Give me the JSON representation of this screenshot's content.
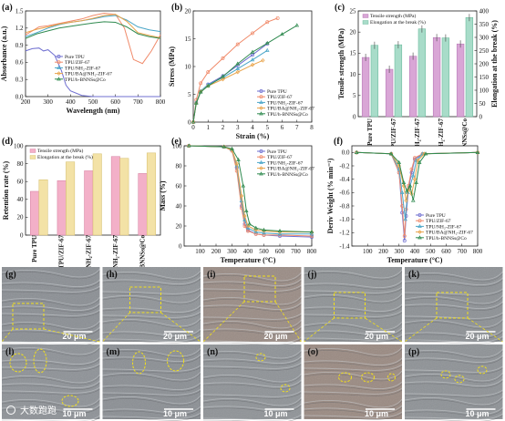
{
  "colors": {
    "pure": "#6f6fd0",
    "zif": "#f08a6a",
    "nh2": "#4aa6c8",
    "ba": "#e8a34a",
    "bnns": "#2f8a4f"
  },
  "series_names": [
    "Pure TPU",
    "TPU/ZIF-67",
    "TPU/NH₂-ZIF-67",
    "TPU/BA@NH₂-ZIF-67",
    "TPU/h-BNNSs@Co"
  ],
  "chart_data": [
    {
      "panel": "(a)",
      "type": "line",
      "xlabel": "Wavelength (nm)",
      "ylabel": "Absorbance (a.u.)",
      "xlim": [
        200,
        800
      ],
      "ylim": [
        0.0,
        1.5
      ],
      "xticks": [
        200,
        300,
        400,
        500,
        600,
        700,
        800
      ],
      "yticks": [
        0.0,
        0.3,
        0.6,
        0.9,
        1.2,
        1.5
      ],
      "legend": "center",
      "series": [
        {
          "name": "Pure TPU",
          "x": [
            200,
            230,
            260,
            280,
            300,
            330,
            360,
            380,
            400,
            450,
            500,
            600,
            700,
            800
          ],
          "y": [
            0.8,
            0.84,
            0.85,
            0.8,
            0.82,
            0.72,
            0.45,
            0.2,
            0.1,
            0.02,
            0.0,
            0.0,
            0.0,
            0.0
          ]
        },
        {
          "name": "TPU/ZIF-67",
          "x": [
            200,
            230,
            260,
            300,
            350,
            400,
            450,
            500,
            550,
            600,
            640,
            680,
            720,
            760,
            800
          ],
          "y": [
            1.08,
            1.15,
            1.22,
            1.24,
            1.28,
            1.32,
            1.36,
            1.42,
            1.46,
            1.44,
            1.2,
            0.65,
            0.58,
            0.8,
            1.08
          ]
        },
        {
          "name": "TPU/NH₂-ZIF-67",
          "x": [
            200,
            250,
            300,
            350,
            400,
            450,
            500,
            550,
            600,
            650,
            700,
            750,
            800
          ],
          "y": [
            1.05,
            1.12,
            1.2,
            1.26,
            1.3,
            1.33,
            1.36,
            1.4,
            1.42,
            1.34,
            1.22,
            1.17,
            1.14
          ]
        },
        {
          "name": "TPU/BA@NH₂-ZIF-67",
          "x": [
            200,
            250,
            300,
            350,
            400,
            450,
            500,
            550,
            600,
            650,
            700,
            750,
            800
          ],
          "y": [
            1.12,
            1.18,
            1.22,
            1.27,
            1.3,
            1.33,
            1.37,
            1.42,
            1.44,
            1.32,
            1.12,
            1.07,
            1.03
          ]
        },
        {
          "name": "TPU/h-BNNSs@Co",
          "x": [
            200,
            250,
            300,
            350,
            400,
            450,
            500,
            550,
            600,
            650,
            700,
            750,
            800
          ],
          "y": [
            1.02,
            1.1,
            1.15,
            1.2,
            1.23,
            1.26,
            1.29,
            1.31,
            1.3,
            1.22,
            1.1,
            1.05,
            1.02
          ]
        }
      ]
    },
    {
      "panel": "(b)",
      "type": "line",
      "xlabel": "Strain (%)",
      "ylabel": "Stress (MPa)",
      "xlim": [
        0,
        8
      ],
      "ylim": [
        0,
        20
      ],
      "xticks": [
        0,
        1,
        2,
        3,
        4,
        5,
        6,
        7,
        8
      ],
      "yticks": [
        0,
        5,
        10,
        15,
        20
      ],
      "legend": "lower-right",
      "series": [
        {
          "name": "Pure TPU",
          "x": [
            0,
            0.2,
            0.5,
            1,
            2,
            3,
            4,
            5
          ],
          "y": [
            0,
            3.5,
            5.5,
            6.8,
            8.3,
            10.2,
            12.1,
            14.1
          ]
        },
        {
          "name": "TPU/ZIF-67",
          "x": [
            0,
            0.2,
            0.5,
            1,
            2,
            3,
            4,
            5,
            5.7
          ],
          "y": [
            0,
            4,
            7,
            9,
            11.5,
            14,
            16,
            18,
            18.7
          ]
        },
        {
          "name": "TPU/NH₂-ZIF-67",
          "x": [
            0,
            0.2,
            0.5,
            1,
            2,
            3,
            4,
            5
          ],
          "y": [
            0,
            3.5,
            5.6,
            6.7,
            8,
            9.6,
            11.2,
            12.9
          ]
        },
        {
          "name": "TPU/BA@NH₂-ZIF-67",
          "x": [
            0,
            0.2,
            0.5,
            1,
            2,
            3,
            4,
            4.7
          ],
          "y": [
            0,
            3.4,
            5.5,
            6.5,
            7.7,
            9,
            10.3,
            11.1
          ]
        },
        {
          "name": "TPU/h-BNNSs@Co",
          "x": [
            0,
            0.2,
            0.5,
            1,
            2,
            3,
            4,
            5,
            6,
            7
          ],
          "y": [
            0,
            3.4,
            5.4,
            6.5,
            8.2,
            10.5,
            12.6,
            14.2,
            15.8,
            17.4
          ]
        }
      ]
    },
    {
      "panel": "(c)",
      "type": "bar",
      "categories": [
        "Pure TPU",
        "TPU/ZIF-67",
        "TPU/NH₂-ZIF-67",
        "TPU/BA@NH₂-ZIF-67",
        "TPU/h-BNNSs@Co"
      ],
      "ylabel": "Tensile strength (MPa)",
      "y2label": "Elongation at the break (%)",
      "ylim": [
        0,
        25
      ],
      "y2lim": [
        0,
        400
      ],
      "yticks": [
        0,
        5,
        10,
        15,
        20,
        25
      ],
      "y2ticks": [
        0,
        50,
        100,
        150,
        200,
        250,
        300,
        350,
        400
      ],
      "legend": "top-left",
      "series": [
        {
          "name": "Tensile strength (MPa)",
          "values": [
            14,
            11.2,
            14.3,
            18.7,
            17.2
          ]
        },
        {
          "name": "Elongation at the break (%)",
          "values": [
            270,
            272,
            332,
            298,
            375
          ]
        }
      ]
    },
    {
      "panel": "(d)",
      "type": "bar",
      "categories": [
        "Pure TPU",
        "TPU/ZIF-67",
        "TPU/NH₂-ZIF-67",
        "TPU/BA@NH₂-ZIF-67",
        "TPU/h-BNNSs@Co"
      ],
      "ylabel": "Retention rate (%)",
      "ylim": [
        0,
        100
      ],
      "yticks": [
        0,
        20,
        40,
        60,
        80,
        100
      ],
      "legend": "top-left",
      "series": [
        {
          "name": "Tensile strength (MPa)",
          "values": [
            49,
            61,
            72,
            88,
            69
          ]
        },
        {
          "name": "Elongation at the break (%)",
          "values": [
            62,
            82,
            91,
            86,
            92
          ]
        }
      ]
    },
    {
      "panel": "(e)",
      "type": "line",
      "xlabel": "Temperature (°C)",
      "ylabel": "Mass (%)",
      "xlim": [
        0,
        800
      ],
      "ylim": [
        0,
        100
      ],
      "xticks": [
        100,
        200,
        300,
        400,
        500,
        600,
        700,
        800
      ],
      "yticks": [
        0,
        20,
        40,
        60,
        80,
        100
      ],
      "legend": "top-right",
      "series": [
        {
          "name": "Pure TPU",
          "x": [
            30,
            250,
            300,
            330,
            360,
            380,
            400,
            450,
            500,
            600,
            800
          ],
          "y": [
            100,
            99,
            96,
            78,
            40,
            22,
            16,
            12,
            11,
            10,
            9
          ]
        },
        {
          "name": "TPU/ZIF-67",
          "x": [
            30,
            250,
            300,
            330,
            360,
            380,
            400,
            450,
            500,
            600,
            800
          ],
          "y": [
            100,
            99,
            95,
            75,
            38,
            20,
            15,
            12,
            11,
            11,
            10
          ]
        },
        {
          "name": "TPU/NH₂-ZIF-67",
          "x": [
            30,
            250,
            300,
            330,
            360,
            380,
            400,
            450,
            500,
            600,
            800
          ],
          "y": [
            100,
            99,
            96,
            80,
            45,
            26,
            18,
            14,
            13,
            12,
            12
          ]
        },
        {
          "name": "TPU/BA@NH₂-ZIF-67",
          "x": [
            30,
            250,
            300,
            330,
            360,
            380,
            400,
            450,
            500,
            600,
            800
          ],
          "y": [
            100,
            99,
            96,
            82,
            50,
            30,
            20,
            16,
            15,
            14,
            14
          ]
        },
        {
          "name": "TPU/h-BNNSs@Co",
          "x": [
            30,
            250,
            300,
            340,
            370,
            390,
            410,
            450,
            500,
            600,
            800
          ],
          "y": [
            100,
            99,
            97,
            86,
            60,
            35,
            22,
            18,
            16,
            15,
            14
          ]
        }
      ]
    },
    {
      "panel": "(f)",
      "type": "line",
      "xlabel": "Temperature (°C)",
      "ylabel": "Deriv Weight (% min⁻¹)",
      "xlim": [
        0,
        800
      ],
      "ylim": [
        -1.4,
        0.1
      ],
      "xticks": [
        100,
        200,
        300,
        400,
        500,
        600,
        700,
        800
      ],
      "yticks": [
        0.0,
        -0.2,
        -0.4,
        -0.6,
        -0.8,
        -1.0,
        -1.2,
        -1.4
      ],
      "legend": "bottom-right",
      "series": [
        {
          "name": "Pure TPU",
          "x": [
            30,
            250,
            300,
            320,
            335,
            345,
            360,
            380,
            400,
            450,
            800
          ],
          "y": [
            0,
            -0.02,
            -0.3,
            -0.9,
            -1.32,
            -0.95,
            -0.55,
            -0.3,
            -0.1,
            -0.02,
            0
          ]
        },
        {
          "name": "TPU/ZIF-67",
          "x": [
            30,
            250,
            300,
            320,
            335,
            345,
            360,
            380,
            400,
            450,
            800
          ],
          "y": [
            0,
            -0.02,
            -0.3,
            -0.8,
            -1.25,
            -0.85,
            -0.5,
            -0.25,
            -0.08,
            -0.02,
            0
          ]
        },
        {
          "name": "TPU/NH₂-ZIF-67",
          "x": [
            30,
            250,
            300,
            320,
            340,
            355,
            370,
            390,
            410,
            450,
            800
          ],
          "y": [
            0,
            -0.02,
            -0.25,
            -0.6,
            -1.0,
            -0.6,
            -0.5,
            -0.35,
            -0.12,
            -0.02,
            0
          ]
        },
        {
          "name": "TPU/BA@NH₂-ZIF-67",
          "x": [
            30,
            250,
            300,
            330,
            345,
            360,
            380,
            400,
            420,
            460,
            800
          ],
          "y": [
            0,
            -0.02,
            -0.2,
            -0.5,
            -0.72,
            -0.55,
            -0.62,
            -0.4,
            -0.12,
            -0.02,
            0
          ]
        },
        {
          "name": "TPU/h-BNNSs@Co",
          "x": [
            30,
            250,
            300,
            330,
            350,
            370,
            390,
            410,
            430,
            470,
            800
          ],
          "y": [
            0,
            -0.02,
            -0.15,
            -0.45,
            -0.58,
            -0.5,
            -0.72,
            -0.45,
            -0.15,
            -0.02,
            0
          ]
        }
      ]
    }
  ],
  "panel_labels": {
    "a": "(a)",
    "b": "(b)",
    "c": "(c)",
    "d": "(d)",
    "e": "(e)",
    "f": "(f)"
  },
  "sem": {
    "labels": [
      "(g)",
      "(h)",
      "(i)",
      "(j)",
      "(k)",
      "(l)",
      "(m)",
      "(n)",
      "(o)",
      "(p)"
    ],
    "scale_top": "20 μm",
    "scale_bottom": "10 μm",
    "watermark": "大数跑跑"
  }
}
